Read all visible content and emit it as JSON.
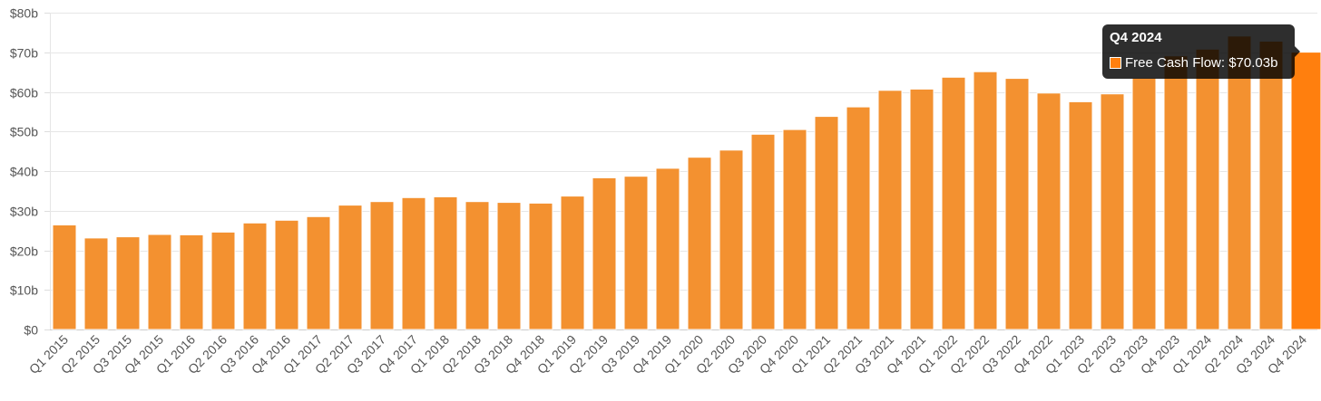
{
  "chart_data": {
    "type": "bar",
    "title": "",
    "xlabel": "",
    "ylabel": "",
    "ylim": [
      0,
      80
    ],
    "y_ticks": [
      "$0",
      "$10b",
      "$20b",
      "$30b",
      "$40b",
      "$50b",
      "$60b",
      "$70b",
      "$80b"
    ],
    "y_tick_values": [
      0,
      10,
      20,
      30,
      40,
      50,
      60,
      70,
      80
    ],
    "grid": true,
    "categories": [
      "Q1 2015",
      "Q2 2015",
      "Q3 2015",
      "Q4 2015",
      "Q1 2016",
      "Q2 2016",
      "Q3 2016",
      "Q4 2016",
      "Q1 2017",
      "Q2 2017",
      "Q3 2017",
      "Q4 2017",
      "Q1 2018",
      "Q2 2018",
      "Q3 2018",
      "Q4 2018",
      "Q1 2019",
      "Q2 2019",
      "Q3 2019",
      "Q4 2019",
      "Q1 2020",
      "Q2 2020",
      "Q3 2020",
      "Q4 2020",
      "Q1 2021",
      "Q2 2021",
      "Q3 2021",
      "Q4 2021",
      "Q1 2022",
      "Q2 2022",
      "Q3 2022",
      "Q4 2022",
      "Q1 2023",
      "Q2 2023",
      "Q3 2023",
      "Q4 2023",
      "Q1 2024",
      "Q2 2024",
      "Q3 2024",
      "Q4 2024"
    ],
    "series": [
      {
        "name": "Free Cash Flow",
        "color": "#f39130",
        "highlight_color": "#ff7f0e",
        "values": [
          26.4,
          23.1,
          23.4,
          24.0,
          23.9,
          24.6,
          26.9,
          27.6,
          28.5,
          31.4,
          32.3,
          33.3,
          33.5,
          32.3,
          32.1,
          31.9,
          33.7,
          38.3,
          38.7,
          40.7,
          43.5,
          45.3,
          49.3,
          50.5,
          53.8,
          56.2,
          60.4,
          60.7,
          63.7,
          65.1,
          63.4,
          59.7,
          57.5,
          59.5,
          63.5,
          69.1,
          70.8,
          74.1,
          72.8,
          70.03
        ]
      }
    ],
    "tooltip": {
      "title": "Q4 2024",
      "label": "Free Cash Flow: $70.03b"
    }
  }
}
